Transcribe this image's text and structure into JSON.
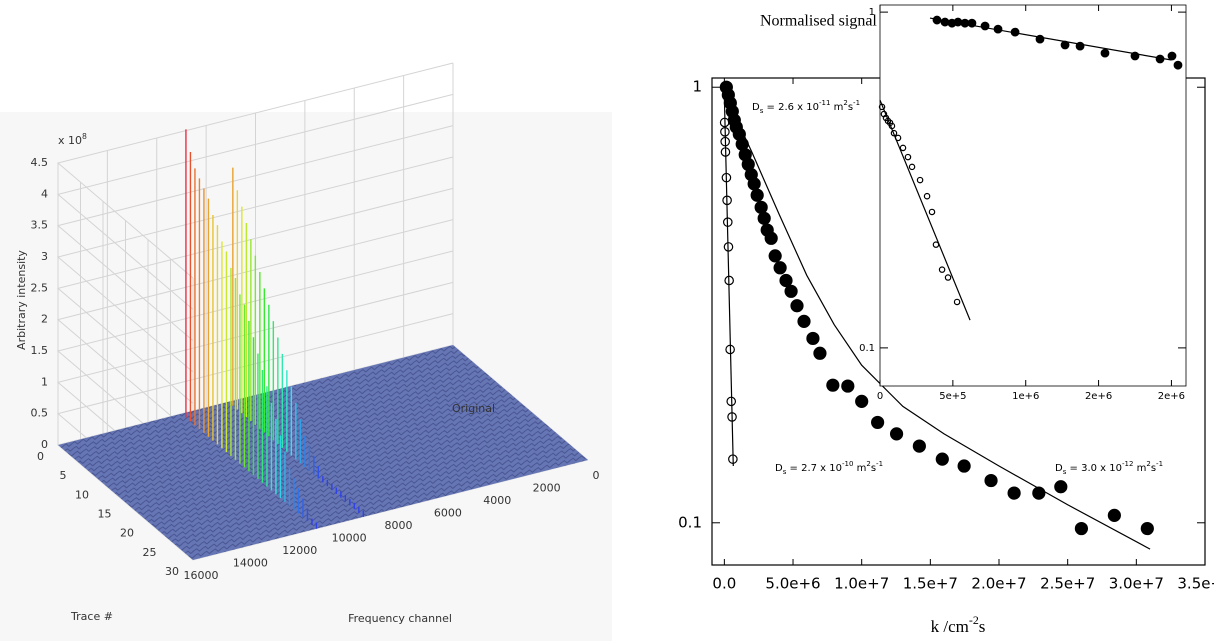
{
  "chart_data": [
    {
      "type": "surface3d",
      "zscale": [
        "x 10",
        "8"
      ],
      "zlabel": "Arbitrary intensity",
      "xlabel": "Trace #",
      "ylabel": "Frequency channel",
      "annotation": "Original",
      "xlim": [
        0,
        30
      ],
      "xticks": [
        0,
        5,
        10,
        15,
        20,
        25,
        30
      ],
      "ylim": [
        0,
        16000
      ],
      "yticks": [
        0,
        2000,
        4000,
        6000,
        8000,
        10000,
        12000,
        14000,
        16000
      ],
      "zlim": [
        0,
        4.5
      ],
      "zticks": [
        0,
        0.5,
        1,
        1.5,
        2,
        2.5,
        3,
        3.5,
        4,
        4.5
      ],
      "traces": [
        1,
        2,
        3,
        4,
        5,
        6,
        7,
        8,
        9,
        10,
        11,
        12,
        13,
        14,
        15,
        16,
        17,
        18,
        19,
        20,
        21,
        22,
        23,
        24,
        25,
        26,
        27,
        28,
        29,
        30
      ],
      "series": [
        {
          "channel": 11000,
          "values": [
            4.6,
            4.3,
            4.1,
            4.0,
            3.9,
            3.8,
            3.6,
            3.5,
            3.3,
            3.2,
            3.0,
            2.9,
            2.7,
            2.6,
            2.4,
            2.2,
            2.0,
            1.8,
            1.6,
            1.4,
            1.2,
            1.0,
            0.8,
            0.6,
            0.5,
            0.4,
            0.3,
            0.2,
            0.1,
            0.1
          ]
        },
        {
          "channel": 9100,
          "values": [
            3.8,
            3.5,
            3.3,
            3.1,
            2.9,
            2.7,
            2.5,
            2.3,
            2.1,
            1.9,
            1.7,
            1.5,
            1.3,
            1.1,
            0.9,
            0.7,
            0.5,
            0.4,
            0.3,
            0.2,
            0.1,
            0.1,
            0.1,
            0.1,
            0.1,
            0.1,
            0.1,
            0.1,
            0.1,
            0.1
          ]
        }
      ]
    },
    {
      "type": "scatter",
      "title": "Normalised signal",
      "xlabel": [
        "k /cm",
        "-2",
        "s"
      ],
      "log_y": true,
      "xlim": [
        -900000,
        35000000
      ],
      "xticks": [
        {
          "value": 0,
          "label": "0.0"
        },
        {
          "value": 5000000,
          "label": "5.0e+6"
        },
        {
          "value": 10000000,
          "label": "1.0e+7"
        },
        {
          "value": 15000000,
          "label": "1.5e+7"
        },
        {
          "value": 20000000,
          "label": "2.0e+7"
        },
        {
          "value": 25000000,
          "label": "2.5e+7"
        },
        {
          "value": 30000000,
          "label": "3.0e+7"
        },
        {
          "value": 35000000,
          "label": "3.5e+7"
        }
      ],
      "ylim": [
        0.08,
        1.05
      ],
      "yticks": [
        0.1,
        1
      ],
      "series": [
        {
          "style": "filled",
          "color": "#000000",
          "x": [
            145000,
            290000,
            435000,
            580000,
            725000,
            870000,
            1090000,
            1300000,
            1520000,
            1740000,
            1960000,
            2170000,
            2390000,
            2680000,
            2900000,
            3120000,
            3410000,
            3700000,
            4060000,
            4490000,
            4860000,
            5290000,
            5800000,
            6450000,
            6960000,
            7900000,
            8990000,
            10000000,
            11160000,
            12540000,
            14200000,
            15870000,
            17460000,
            19420000,
            21100000,
            22900000,
            24500000,
            26000000,
            28400000,
            30800000
          ],
          "values": [
            1.0,
            0.96,
            0.92,
            0.88,
            0.84,
            0.81,
            0.78,
            0.74,
            0.7,
            0.665,
            0.63,
            0.6,
            0.565,
            0.53,
            0.5,
            0.47,
            0.45,
            0.41,
            0.385,
            0.36,
            0.34,
            0.315,
            0.29,
            0.265,
            0.245,
            0.207,
            0.206,
            0.19,
            0.17,
            0.16,
            0.15,
            0.14,
            0.135,
            0.125,
            0.117,
            0.117,
            0.121,
            0.097,
            0.104,
            0.097
          ]
        },
        {
          "style": "open",
          "color": "#000000",
          "x": [
            20000,
            40000,
            60000,
            80000,
            150000,
            200000,
            250000,
            300000,
            350000,
            420000,
            500000,
            560000,
            620000
          ],
          "values": [
            0.83,
            0.79,
            0.75,
            0.71,
            0.62,
            0.55,
            0.49,
            0.43,
            0.36,
            0.25,
            0.19,
            0.175,
            0.14
          ]
        },
        {
          "style": "line",
          "color": "#000000",
          "x": [
            0,
            650000
          ],
          "values": [
            0.95,
            0.135
          ]
        },
        {
          "style": "line",
          "color": "#000000",
          "x": [
            0,
            1000000,
            2000000,
            4000000,
            6000000,
            8000000,
            10000000,
            13000000,
            16000000,
            20000000,
            25000000,
            31000000
          ],
          "values": [
            0.95,
            0.83,
            0.71,
            0.51,
            0.37,
            0.285,
            0.23,
            0.185,
            0.16,
            0.135,
            0.11,
            0.087
          ]
        }
      ],
      "annotations": [
        {
          "parts": [
            "D",
            "s",
            " = 2.6 x 10",
            "-11",
            " m",
            "2",
            "s",
            "-1"
          ]
        },
        {
          "parts": [
            "D",
            "s",
            " = 2.7 x 10",
            "-10",
            " m",
            "2",
            "s",
            "-1"
          ]
        },
        {
          "parts": [
            "D",
            "s",
            " = 3.0 x 10",
            "-12",
            " m",
            "2",
            "s",
            "-1"
          ]
        }
      ]
    },
    {
      "type": "scatter",
      "log_y": true,
      "xlim": [
        0,
        2100000
      ],
      "xticks": [
        0,
        {
          "value": 500000,
          "label": "5e+5"
        },
        {
          "value": 1000000,
          "label": "1e+6"
        },
        {
          "value": 1500000,
          "label": "2e+6"
        },
        {
          "value": 2000000,
          "label": "2e+6"
        }
      ],
      "ylim": [
        0.077,
        1.05
      ],
      "yticks": [
        0.1,
        1
      ],
      "series": [
        {
          "style": "filled",
          "color": "#000000",
          "x": [
            391000,
            446000,
            494000,
            535000,
            583000,
            631000,
            721000,
            810000,
            927000,
            1098000,
            1270000,
            1373000,
            1544000,
            1750000,
            1922000,
            2004000,
            2045000
          ],
          "values": [
            0.947,
            0.934,
            0.927,
            0.934,
            0.927,
            0.927,
            0.909,
            0.89,
            0.872,
            0.831,
            0.798,
            0.792,
            0.755,
            0.74,
            0.725,
            0.74,
            0.695
          ]
        },
        {
          "style": "open",
          "color": "#000000",
          "x": [
            14000,
            27000,
            41000,
            55000,
            69000,
            82000,
            96000,
            124000,
            158000,
            192000,
            220000,
            275000,
            323000,
            357000,
            384000,
            426000,
            467000,
            529000
          ],
          "values": [
            0.522,
            0.497,
            0.484,
            0.474,
            0.468,
            0.458,
            0.436,
            0.422,
            0.394,
            0.37,
            0.346,
            0.316,
            0.283,
            0.254,
            0.203,
            0.171,
            0.162,
            0.137
          ]
        },
        {
          "style": "line",
          "color": "#000000",
          "x": [
            343000,
            2000000
          ],
          "values": [
            0.96,
            0.72
          ]
        },
        {
          "style": "line",
          "color": "#000000",
          "x": [
            0,
            618000
          ],
          "values": [
            0.547,
            0.121
          ]
        }
      ]
    }
  ]
}
